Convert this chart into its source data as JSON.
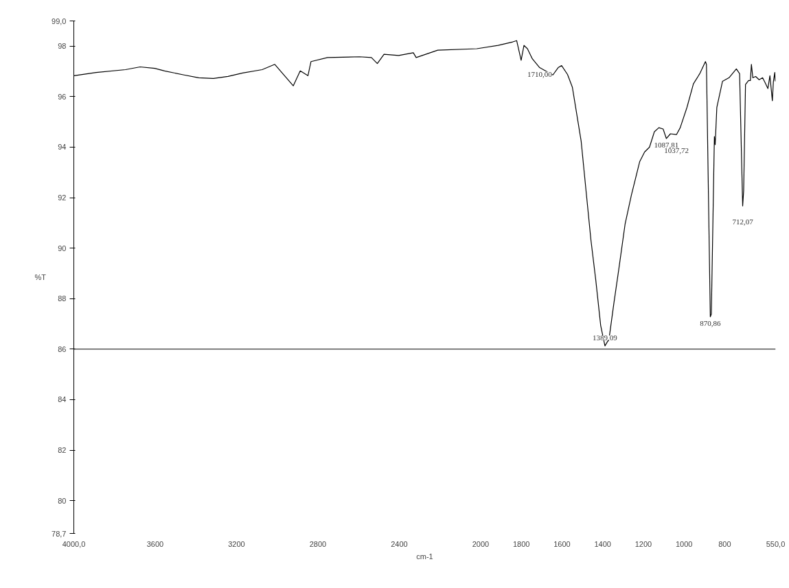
{
  "chart_data": {
    "type": "line",
    "xlabel": "cm-1",
    "ylabel": "%T",
    "x": [
      4000,
      3890,
      3746,
      3674,
      3602,
      3554,
      3458,
      3386,
      3314,
      3242,
      3170,
      3074,
      3012,
      2921,
      2887,
      2849,
      2834,
      2753,
      2595,
      2537,
      2508,
      2475,
      2403,
      2331,
      2317,
      2211,
      2019,
      1914,
      1842,
      1823,
      1801,
      1787,
      1770,
      1746,
      1710,
      1698,
      1645,
      1619,
      1602,
      1573,
      1549,
      1506,
      1482,
      1458,
      1434,
      1410,
      1389,
      1369,
      1345,
      1321,
      1290,
      1259,
      1218,
      1194,
      1170,
      1146,
      1124,
      1103,
      1087,
      1067,
      1037,
      1019,
      986,
      954,
      923,
      895,
      890,
      871,
      866,
      851,
      847,
      839,
      811,
      779,
      743,
      727,
      712,
      707,
      698,
      683,
      674,
      669,
      662,
      648,
      631,
      614,
      602,
      588,
      578,
      566,
      561,
      554,
      552
    ],
    "series": [
      {
        "color": "#000000",
        "values": [
          96.83,
          96.96,
          97.07,
          97.18,
          97.12,
          97.02,
          96.86,
          96.75,
          96.72,
          96.8,
          96.94,
          97.07,
          97.28,
          96.43,
          97.02,
          96.83,
          97.39,
          97.55,
          97.58,
          97.55,
          97.31,
          97.68,
          97.63,
          97.74,
          97.55,
          97.84,
          97.9,
          98.03,
          98.17,
          98.22,
          97.44,
          98.03,
          97.9,
          97.5,
          97.15,
          97.1,
          96.86,
          97.15,
          97.23,
          96.88,
          96.37,
          94.24,
          92.28,
          90.33,
          88.73,
          86.94,
          86.13,
          86.4,
          87.82,
          89.16,
          90.95,
          92.1,
          93.43,
          93.81,
          94.0,
          94.61,
          94.77,
          94.72,
          94.34,
          94.53,
          94.5,
          94.77,
          95.57,
          96.51,
          96.91,
          97.39,
          97.28,
          87.28,
          87.39,
          94.42,
          94.1,
          95.57,
          96.61,
          96.75,
          97.1,
          96.91,
          91.67,
          92.28,
          96.48,
          96.64,
          96.64,
          97.28,
          96.75,
          96.8,
          96.67,
          96.75,
          96.56,
          96.32,
          96.83,
          95.84,
          96.59,
          96.96,
          96.61
        ]
      }
    ],
    "xlim": [
      4000,
      550
    ],
    "ylim": [
      78.7,
      99.0
    ],
    "xticks": [
      {
        "value": 4000,
        "label": "4000,0"
      },
      3600,
      3200,
      2800,
      2400,
      2000,
      1800,
      1600,
      1400,
      1200,
      1000,
      800,
      {
        "value": 550,
        "label": "550,0"
      }
    ],
    "yticks": [
      {
        "value": 99,
        "label": "99,0"
      },
      98,
      96,
      94,
      92,
      90,
      88,
      86,
      84,
      82,
      80,
      {
        "value": 78.7,
        "label": "78,7"
      }
    ],
    "ref_lines": [
      {
        "axis": "y",
        "value": 86
      }
    ],
    "annotations": [
      {
        "text": "1710,00",
        "x": 1710,
        "y": 97.15
      },
      {
        "text": "1389,09",
        "x": 1389,
        "y": 86.13
      },
      {
        "text": "1087,81",
        "x": 1087,
        "y": 94.34
      },
      {
        "text": "1037,72",
        "x": 1037,
        "y": 94.5
      },
      {
        "text": "870,86",
        "x": 871,
        "y": 87.28
      },
      {
        "text": "712,07",
        "x": 712,
        "y": 91.67
      }
    ],
    "grid": false,
    "marker": "none",
    "line_style": "solid"
  }
}
